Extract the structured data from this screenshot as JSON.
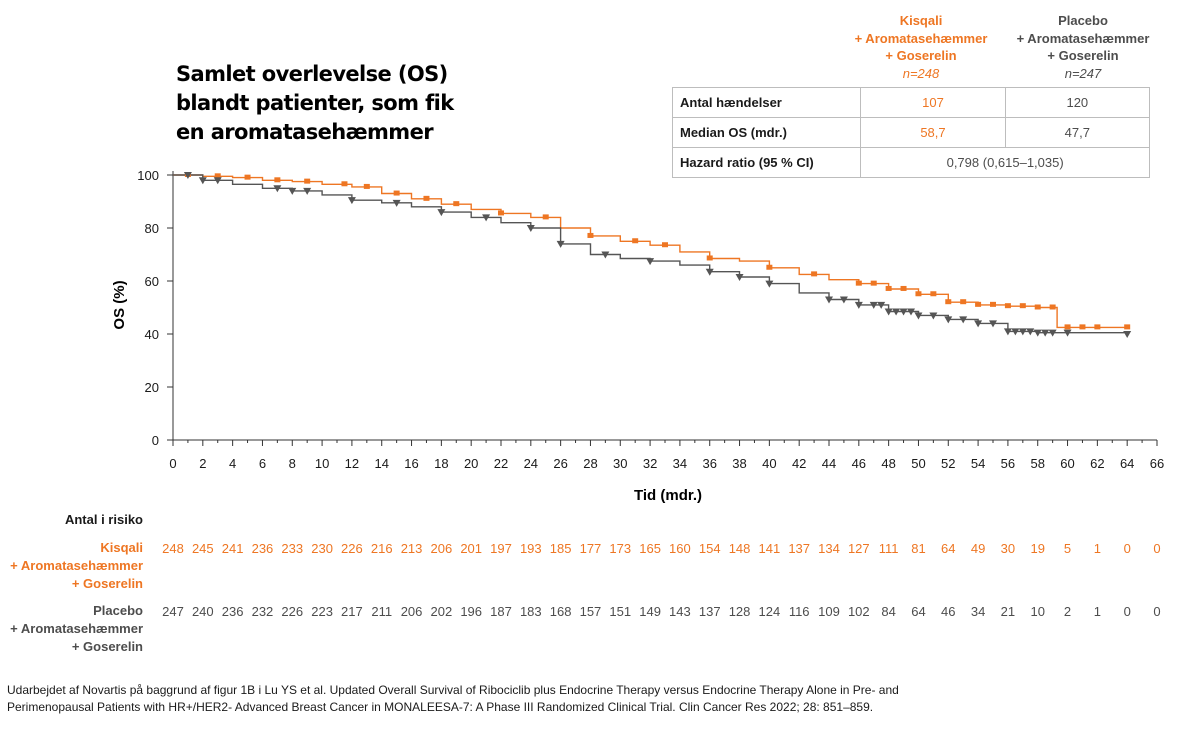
{
  "title_lines": [
    "Samlet overlevelse (OS)",
    "blandt patienter, som fik",
    "en aromatasehæmmer"
  ],
  "header": {
    "kisqali": {
      "lines": [
        "Kisqali",
        "+ Aromatasehæmmer",
        "+ Goserelin"
      ],
      "n": "n=248"
    },
    "placebo": {
      "lines": [
        "Placebo",
        "+ Aromatasehæmmer",
        "+ Goserelin"
      ],
      "n": "n=247"
    }
  },
  "stats_table": {
    "events": {
      "label": "Antal hændelser",
      "kisqali": "107",
      "placebo": "120"
    },
    "median": {
      "label": "Median OS (mdr.)",
      "kisqali": "58,7",
      "placebo": "47,7"
    },
    "hr": {
      "label": "Hazard ratio (95 % CI)",
      "value": "0,798 (0,615–1,035)"
    }
  },
  "chart_data": {
    "type": "line",
    "title": "Samlet overlevelse (OS) blandt patienter, som fik en aromatasehæmmer",
    "xlabel": "Tid (mdr.)",
    "ylabel": "OS (%)",
    "xlim": [
      0,
      66
    ],
    "ylim": [
      0,
      100
    ],
    "xticks": [
      0,
      2,
      4,
      6,
      8,
      10,
      12,
      14,
      16,
      18,
      20,
      22,
      24,
      26,
      28,
      30,
      32,
      34,
      36,
      38,
      40,
      42,
      44,
      46,
      48,
      50,
      52,
      54,
      56,
      58,
      60,
      62,
      64,
      66
    ],
    "yticks": [
      0,
      20,
      40,
      60,
      80,
      100
    ],
    "series": [
      {
        "name": "Kisqali + Aromatasehæmmer + Goserelin",
        "color": "#ee7623",
        "marker": "square",
        "x": [
          0,
          2,
          4,
          6,
          8,
          10,
          12,
          14,
          16,
          18,
          20,
          22,
          24,
          26,
          28,
          30,
          32,
          34,
          36,
          38,
          40,
          42,
          44,
          46,
          48,
          50,
          52,
          54,
          56,
          58,
          59.3,
          59.3,
          60,
          62,
          64
        ],
        "y": [
          100,
          99.5,
          99,
          98,
          97.5,
          96.5,
          95.5,
          93,
          91,
          89,
          87,
          85.5,
          84,
          80,
          77,
          75,
          73.5,
          71,
          68.5,
          67.5,
          65,
          62.5,
          60.5,
          59,
          57,
          55,
          52,
          51,
          50.5,
          50,
          50,
          42.5,
          42.5,
          42.5,
          42.5
        ],
        "censor_x": [
          1,
          3,
          5,
          7,
          9,
          11.5,
          13,
          15,
          17,
          19,
          22,
          25,
          28,
          31,
          33,
          36,
          40,
          43,
          46,
          47,
          48,
          49,
          50,
          51,
          52,
          53,
          54,
          55,
          56,
          57,
          58,
          59,
          60,
          61,
          62,
          64
        ]
      },
      {
        "name": "Placebo + Aromatasehæmmer + Goserelin",
        "color": "#555555",
        "marker": "triangle-down",
        "x": [
          0,
          2,
          4,
          6,
          8,
          10,
          12,
          14,
          16,
          18,
          20,
          22,
          24,
          26,
          28,
          30,
          32,
          34,
          36,
          38,
          40,
          42,
          44,
          46,
          48,
          50,
          52,
          54,
          56,
          58,
          60,
          62,
          64
        ],
        "y": [
          100,
          98,
          96.5,
          95,
          94,
          92.5,
          90.5,
          89.5,
          88,
          86,
          84,
          82,
          80,
          74,
          70,
          68.5,
          67.5,
          66,
          63.5,
          61.5,
          59,
          55.5,
          53,
          51,
          48.5,
          47,
          45.5,
          44,
          41,
          40.5,
          40.5,
          40.5,
          40
        ]
      }
    ],
    "number_at_risk": {
      "title": "Antal i risiko",
      "times": [
        0,
        2,
        4,
        6,
        8,
        10,
        12,
        14,
        16,
        18,
        20,
        22,
        24,
        26,
        28,
        30,
        32,
        34,
        36,
        38,
        40,
        42,
        44,
        46,
        48,
        50,
        52,
        54,
        56,
        58,
        60,
        62,
        64,
        66
      ],
      "kisqali": {
        "label_lines": [
          "Kisqali",
          "+ Aromatasehæmmer",
          "+ Goserelin"
        ],
        "values": [
          "248",
          "245",
          "241",
          "236",
          "233",
          "230",
          "226",
          "216",
          "213",
          "206",
          "201",
          "197",
          "193",
          "185",
          "177",
          "173",
          "165",
          "160",
          "154",
          "148",
          "141",
          "137",
          "134",
          "127",
          "111",
          "81",
          "64",
          "49",
          "30",
          "19",
          "5",
          "1",
          "0",
          "0"
        ]
      },
      "placebo": {
        "label_lines": [
          "Placebo",
          "+ Aromatasehæmmer",
          "+ Goserelin"
        ],
        "values": [
          "247",
          "240",
          "236",
          "232",
          "226",
          "223",
          "217",
          "211",
          "206",
          "202",
          "196",
          "187",
          "183",
          "168",
          "157",
          "151",
          "149",
          "143",
          "137",
          "128",
          "124",
          "116",
          "109",
          "102",
          "84",
          "64",
          "46",
          "34",
          "21",
          "10",
          "2",
          "1",
          "0",
          "0"
        ]
      }
    }
  },
  "footnote_lines": [
    "Udarbejdet af Novartis på baggrund af figur 1B i Lu YS et al. Updated Overall Survival of Ribociclib plus Endocrine Therapy versus Endocrine Therapy Alone in Pre- and",
    "Perimenopausal Patients with HR+/HER2- Advanced Breast Cancer in MONALEESA-7: A Phase III Randomized Clinical Trial. Clin Cancer Res 2022; 28: 851–859."
  ]
}
